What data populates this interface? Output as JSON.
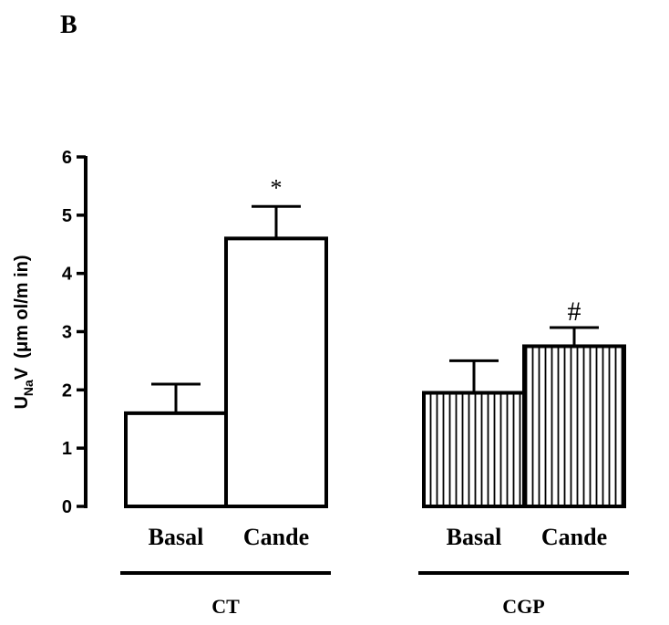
{
  "panel_label": "B",
  "chart_data": {
    "type": "bar",
    "ylabel": {
      "main": "U",
      "subscript": "Na",
      "rest": "V",
      "unit": "(μm ol/m in)"
    },
    "ylim": [
      0,
      6
    ],
    "yticks": [
      0,
      1,
      2,
      3,
      4,
      5,
      6
    ],
    "grid": false,
    "legend": "none",
    "groups": [
      {
        "label": "CT",
        "fill": "open",
        "bars": [
          {
            "category": "Basal",
            "value": 1.6,
            "error": 0.5,
            "annotation": ""
          },
          {
            "category": "Cande",
            "value": 4.6,
            "error": 0.55,
            "annotation": "*"
          }
        ]
      },
      {
        "label": "CGP",
        "fill": "vertical-hatch",
        "bars": [
          {
            "category": "Basal",
            "value": 1.95,
            "error": 0.55,
            "annotation": ""
          },
          {
            "category": "Cande",
            "value": 2.75,
            "error": 0.32,
            "annotation": "#"
          }
        ]
      }
    ],
    "colors": {
      "stroke": "#000000",
      "background": "#ffffff"
    }
  }
}
